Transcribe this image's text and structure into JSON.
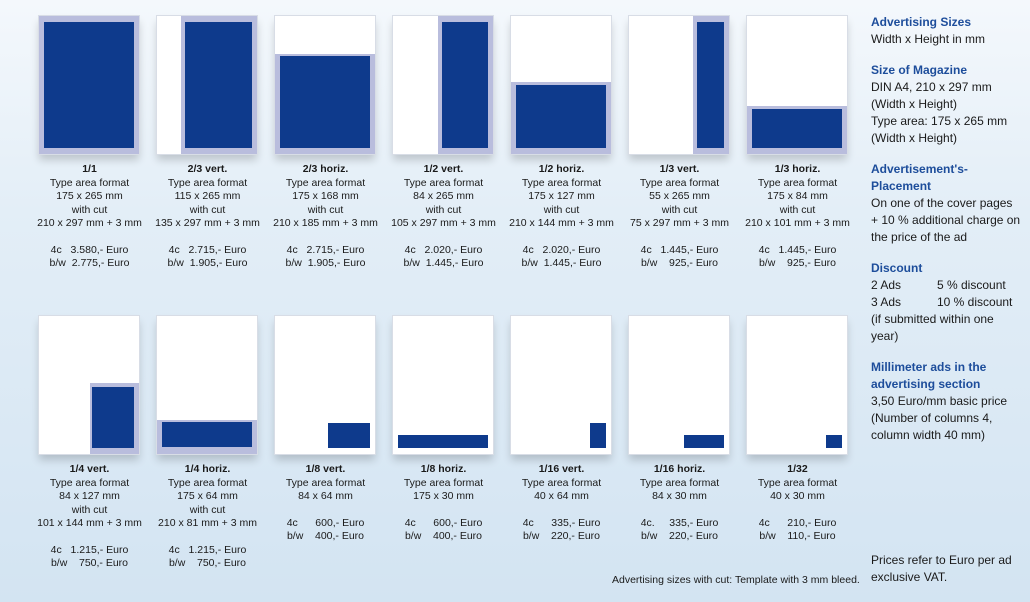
{
  "formats_row1": [
    {
      "title": "1/1",
      "line1": "Type area format",
      "dims": "175 x 265 mm",
      "line3": "with cut",
      "cut": "210 x 297 mm + 3 mm",
      "c4": "4c   3.580,- Euro",
      "bw": "b/w  2.775,- Euro"
    },
    {
      "title": "2/3 vert.",
      "line1": "Type area format",
      "dims": "115 x 265 mm",
      "line3": "with cut",
      "cut": "135 x 297 mm + 3 mm",
      "c4": "4c   2.715,- Euro",
      "bw": "b/w  1.905,- Euro"
    },
    {
      "title": "2/3 horiz.",
      "line1": "Type area format",
      "dims": "175 x 168 mm",
      "line3": "with cut",
      "cut": "210 x 185 mm + 3 mm",
      "c4": "4c   2.715,- Euro",
      "bw": "b/w  1.905,- Euro"
    },
    {
      "title": "1/2 vert.",
      "line1": "Type area format",
      "dims": "84 x 265 mm",
      "line3": "with cut",
      "cut": "105 x 297 mm + 3 mm",
      "c4": "4c   2.020,- Euro",
      "bw": "b/w  1.445,- Euro"
    },
    {
      "title": "1/2 horiz.",
      "line1": "Type area format",
      "dims": "175 x 127 mm",
      "line3": "with cut",
      "cut": "210 x 144 mm + 3 mm",
      "c4": "4c   2.020,- Euro",
      "bw": "b/w  1.445,- Euro"
    },
    {
      "title": "1/3 vert.",
      "line1": "Type area format",
      "dims": "55 x 265 mm",
      "line3": "with cut",
      "cut": "75 x 297 mm + 3 mm",
      "c4": "4c   1.445,- Euro",
      "bw": "b/w    925,- Euro"
    },
    {
      "title": "1/3 horiz.",
      "line1": "Type area format",
      "dims": "175 x 84 mm",
      "line3": "with cut",
      "cut": "210 x 101 mm + 3 mm",
      "c4": "4c   1.445,- Euro",
      "bw": "b/w    925,- Euro"
    }
  ],
  "formats_row2": [
    {
      "title": "1/4 vert.",
      "line1": "Type area format",
      "dims": "84 x 127 mm",
      "line3": "with cut",
      "cut": "101 x 144 mm + 3 mm",
      "c4": "4c   1.215,- Euro",
      "bw": "b/w    750,- Euro"
    },
    {
      "title": "1/4 horiz.",
      "line1": "Type area format",
      "dims": "175 x 64 mm",
      "line3": "with cut",
      "cut": "210 x 81 mm + 3 mm",
      "c4": "4c   1.215,- Euro",
      "bw": "b/w    750,- Euro"
    },
    {
      "title": "1/8 vert.",
      "line1": "Type area format",
      "dims": "84 x 64 mm",
      "line3": "",
      "cut": "",
      "c4": "4c      600,- Euro",
      "bw": "b/w    400,- Euro"
    },
    {
      "title": "1/8 horiz.",
      "line1": "Type area format",
      "dims": "175 x 30 mm",
      "line3": "",
      "cut": "",
      "c4": "4c      600,- Euro",
      "bw": "b/w    400,- Euro"
    },
    {
      "title": "1/16 vert.",
      "line1": "Type area format",
      "dims": "40 x 64 mm",
      "line3": "",
      "cut": "",
      "c4": "4c      335,- Euro",
      "bw": "b/w    220,- Euro"
    },
    {
      "title": "1/16 horiz.",
      "line1": "Type area format",
      "dims": "84 x 30 mm",
      "line3": "",
      "cut": "",
      "c4": "4c.     335,- Euro",
      "bw": "b/w    220,- Euro"
    },
    {
      "title": "1/32",
      "line1": "Type area format",
      "dims": "40 x 30 mm",
      "line3": "",
      "cut": "",
      "c4": "4c      210,- Euro",
      "bw": "b/w    110,- Euro"
    }
  ],
  "footnote": "Advertising sizes with cut: Template with 3 mm bleed.",
  "sidebar": {
    "sizes_heading": "Advertising Sizes",
    "sizes_text": "Width x Height in mm",
    "magazine_heading": "Size of Magazine",
    "magazine_l1": "DIN A4, 210 x 297 mm",
    "magazine_l2": "(Width x Height)",
    "magazine_l3": "Type area: 175 x 265 mm",
    "magazine_l4": "(Width x Height)",
    "placement_heading_1": "Advertisement's-",
    "placement_heading_2": "Placement",
    "placement_l1": "On one of the cover pages",
    "placement_l2": "+ 10 % additional charge on",
    "placement_l3": "the price of the ad",
    "discount_heading": "Discount",
    "discount_rows": [
      {
        "k": "2 Ads",
        "v": "5 % discount"
      },
      {
        "k": "3 Ads",
        "v": "10 % discount"
      }
    ],
    "discount_l1": "(if submitted within one",
    "discount_l2": "year)",
    "mm_heading_1": "Millimeter ads in the",
    "mm_heading_2": "advertising section",
    "mm_l1": "3,50 Euro/mm basic price",
    "mm_l2": "(Number of columns 4,",
    "mm_l3": "column width 40 mm)",
    "prices_l1": "Prices refer to Euro per ad",
    "prices_l2": "exclusive VAT."
  },
  "colors": {
    "ad": "#0e3a8c",
    "bleed": "#b9bddd",
    "heading": "#1d4d9b"
  }
}
